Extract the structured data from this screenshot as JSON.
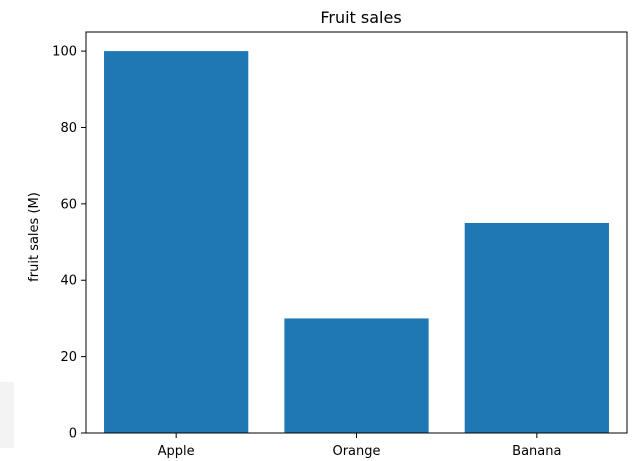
{
  "chart_data": {
    "type": "bar",
    "title": "Fruit sales",
    "xlabel": "",
    "ylabel": "fruit sales (M)",
    "categories": [
      "Apple",
      "Orange",
      "Banana"
    ],
    "values": [
      100,
      30,
      55
    ],
    "ylim": [
      0,
      105
    ],
    "yticks": [
      0,
      20,
      40,
      60,
      80,
      100
    ],
    "bar_color": "#1f77b4",
    "grid": false,
    "legend": "none"
  }
}
